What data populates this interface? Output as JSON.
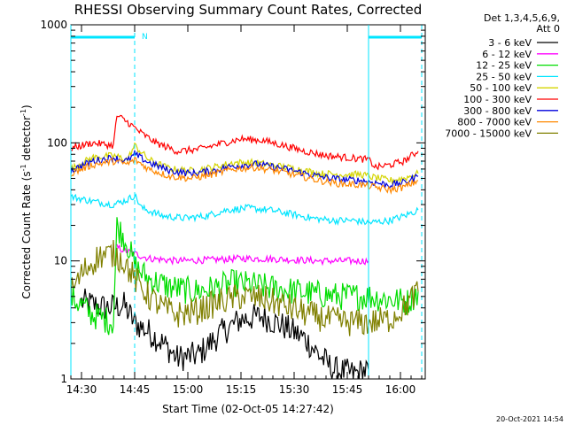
{
  "chart_data": {
    "type": "line",
    "title": "RHESSI Observing Summary Count Rates, Corrected",
    "ylabel_main": "Corrected Count Rate (s",
    "ylabel_sup1": "-1",
    "ylabel_mid": " detector",
    "ylabel_sup2": "-1",
    "ylabel_end": ")",
    "xlabel": "Start Time (02-Oct-05 14:27:42)",
    "yscale": "log",
    "ylim": [
      1,
      1000
    ],
    "xlim_minutes_after_1427": [
      0,
      100
    ],
    "x_ticks": [
      {
        "t": 3,
        "label": "14:30"
      },
      {
        "t": 18,
        "label": "14:45"
      },
      {
        "t": 33,
        "label": "15:00"
      },
      {
        "t": 48,
        "label": "15:15"
      },
      {
        "t": 63,
        "label": "15:30"
      },
      {
        "t": 78,
        "label": "15:45"
      },
      {
        "t": 93,
        "label": "16:00"
      }
    ],
    "y_ticks": [
      {
        "v": 1,
        "label": "1"
      },
      {
        "v": 10,
        "label": "10"
      },
      {
        "v": 100,
        "label": "100"
      },
      {
        "v": 1000,
        "label": "1000"
      }
    ],
    "legend_header": [
      "Det 1,3,4,5,6,9,",
      "Att 0"
    ],
    "legend_placement": "right",
    "footer": "20-Oct-2021 14:54",
    "flag_label": "N",
    "colors": {
      "cyan_flags": "#00e5ff",
      "grid": "none"
    },
    "series": [
      {
        "name": "3 - 6 keV",
        "color": "#000000",
        "points": [
          [
            3,
            4.5
          ],
          [
            10,
            4.0
          ],
          [
            15,
            4.2
          ],
          [
            18,
            3.0
          ],
          [
            22,
            2.5
          ],
          [
            26,
            2.0
          ],
          [
            30,
            1.5
          ],
          [
            36,
            1.6
          ],
          [
            42,
            2.4
          ],
          [
            48,
            3.2
          ],
          [
            54,
            3.4
          ],
          [
            60,
            2.8
          ],
          [
            66,
            2.2
          ],
          [
            70,
            1.6
          ],
          [
            74,
            1.2
          ],
          [
            80,
            1.1
          ],
          [
            84,
            1.2
          ]
        ]
      },
      {
        "name": "6 - 12 keV",
        "color": "#ff00ff",
        "points": [
          [
            13,
            13.0
          ],
          [
            16,
            12.0
          ],
          [
            18,
            11.5
          ],
          [
            22,
            10.5
          ],
          [
            30,
            10.0
          ],
          [
            40,
            10.2
          ],
          [
            48,
            10.5
          ],
          [
            56,
            10.4
          ],
          [
            64,
            10.2
          ],
          [
            70,
            10.0
          ],
          [
            76,
            10.0
          ],
          [
            84,
            10.0
          ]
        ]
      },
      {
        "name": "12 - 25 keV",
        "color": "#00dd00",
        "points": [
          [
            0,
            5.0
          ],
          [
            6,
            3.5
          ],
          [
            12,
            3.0
          ],
          [
            13,
            20.0
          ],
          [
            16,
            14.0
          ],
          [
            18,
            9.0
          ],
          [
            22,
            7.0
          ],
          [
            28,
            6.0
          ],
          [
            34,
            5.5
          ],
          [
            40,
            5.8
          ],
          [
            46,
            6.5
          ],
          [
            52,
            6.2
          ],
          [
            58,
            5.8
          ],
          [
            64,
            5.5
          ],
          [
            70,
            5.2
          ],
          [
            76,
            5.0
          ],
          [
            82,
            5.0
          ],
          [
            84,
            5.0
          ],
          [
            95,
            4.5
          ],
          [
            98,
            5.5
          ]
        ]
      },
      {
        "name": "25 - 50 keV",
        "color": "#00e5ff",
        "points": [
          [
            0,
            35
          ],
          [
            6,
            32
          ],
          [
            12,
            30
          ],
          [
            16,
            33
          ],
          [
            18,
            36
          ],
          [
            20,
            28
          ],
          [
            26,
            24
          ],
          [
            32,
            23
          ],
          [
            38,
            24
          ],
          [
            44,
            27
          ],
          [
            50,
            28
          ],
          [
            56,
            27
          ],
          [
            62,
            25
          ],
          [
            68,
            23
          ],
          [
            74,
            22
          ],
          [
            80,
            22
          ],
          [
            84,
            21
          ],
          [
            90,
            22
          ],
          [
            94,
            24
          ],
          [
            98,
            27
          ]
        ]
      },
      {
        "name": "50 - 100 keV",
        "color": "#d4d400",
        "points": [
          [
            0,
            60
          ],
          [
            6,
            75
          ],
          [
            12,
            78
          ],
          [
            16,
            72
          ],
          [
            18,
            95
          ],
          [
            22,
            72
          ],
          [
            28,
            60
          ],
          [
            34,
            58
          ],
          [
            40,
            62
          ],
          [
            46,
            68
          ],
          [
            52,
            68
          ],
          [
            58,
            64
          ],
          [
            64,
            60
          ],
          [
            70,
            55
          ],
          [
            76,
            54
          ],
          [
            82,
            54
          ],
          [
            84,
            52
          ],
          [
            90,
            48
          ],
          [
            94,
            50
          ],
          [
            98,
            55
          ]
        ]
      },
      {
        "name": "100 - 300 keV",
        "color": "#ff0000",
        "points": [
          [
            0,
            90
          ],
          [
            6,
            100
          ],
          [
            12,
            95
          ],
          [
            13,
            170
          ],
          [
            16,
            150
          ],
          [
            20,
            120
          ],
          [
            24,
            100
          ],
          [
            30,
            85
          ],
          [
            36,
            88
          ],
          [
            42,
            98
          ],
          [
            48,
            108
          ],
          [
            54,
            105
          ],
          [
            60,
            95
          ],
          [
            66,
            85
          ],
          [
            72,
            78
          ],
          [
            78,
            75
          ],
          [
            84,
            72
          ],
          [
            86,
            62
          ],
          [
            90,
            65
          ],
          [
            94,
            70
          ],
          [
            98,
            85
          ]
        ]
      },
      {
        "name": "300 - 800 keV",
        "color": "#0000dd",
        "points": [
          [
            0,
            58
          ],
          [
            6,
            70
          ],
          [
            12,
            75
          ],
          [
            16,
            70
          ],
          [
            18,
            80
          ],
          [
            22,
            68
          ],
          [
            28,
            58
          ],
          [
            34,
            55
          ],
          [
            40,
            58
          ],
          [
            46,
            64
          ],
          [
            52,
            66
          ],
          [
            58,
            62
          ],
          [
            64,
            57
          ],
          [
            70,
            52
          ],
          [
            76,
            49
          ],
          [
            82,
            48
          ],
          [
            84,
            47
          ],
          [
            90,
            44
          ],
          [
            94,
            46
          ],
          [
            98,
            52
          ]
        ]
      },
      {
        "name": "800 - 7000 keV",
        "color": "#ff8800",
        "points": [
          [
            0,
            55
          ],
          [
            6,
            65
          ],
          [
            12,
            70
          ],
          [
            16,
            66
          ],
          [
            18,
            72
          ],
          [
            22,
            60
          ],
          [
            28,
            52
          ],
          [
            34,
            50
          ],
          [
            40,
            54
          ],
          [
            46,
            60
          ],
          [
            52,
            62
          ],
          [
            58,
            58
          ],
          [
            64,
            53
          ],
          [
            70,
            48
          ],
          [
            76,
            45
          ],
          [
            82,
            44
          ],
          [
            84,
            43
          ],
          [
            90,
            40
          ],
          [
            94,
            42
          ],
          [
            98,
            48
          ]
        ]
      },
      {
        "name": "7000 - 15000 keV",
        "color": "#808000",
        "points": [
          [
            0,
            5.5
          ],
          [
            4,
            8.5
          ],
          [
            8,
            11.0
          ],
          [
            12,
            11.5
          ],
          [
            15,
            10.0
          ],
          [
            18,
            7.0
          ],
          [
            22,
            5.0
          ],
          [
            26,
            4.0
          ],
          [
            30,
            3.5
          ],
          [
            36,
            3.8
          ],
          [
            42,
            4.5
          ],
          [
            48,
            5.0
          ],
          [
            54,
            4.8
          ],
          [
            60,
            4.2
          ],
          [
            66,
            3.6
          ],
          [
            72,
            3.2
          ],
          [
            78,
            3.0
          ],
          [
            84,
            3.0
          ],
          [
            90,
            3.2
          ],
          [
            94,
            4.0
          ],
          [
            98,
            5.5
          ]
        ]
      }
    ],
    "time_markers_solid": [
      0,
      84
    ],
    "time_markers_dashed": [
      18,
      99
    ],
    "flag_bars": [
      [
        0,
        18
      ],
      [
        84,
        99
      ]
    ]
  }
}
